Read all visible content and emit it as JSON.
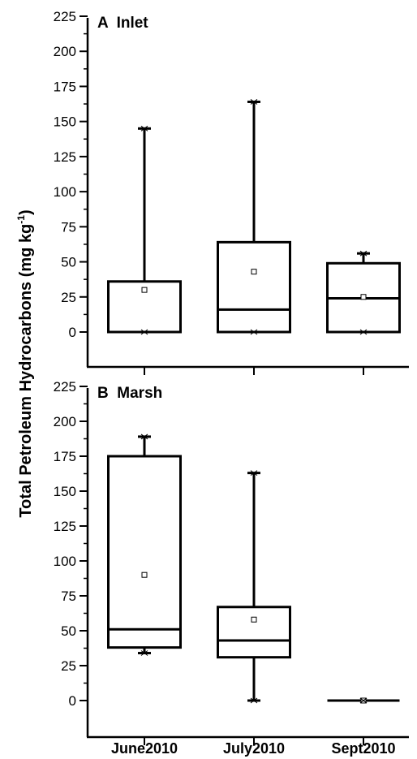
{
  "chart_data": {
    "type": "box",
    "ylabel": "Total Petroleum Hydrocarbons (mg kg",
    "ylabel_superscript": "-1",
    "ylabel_close": ")",
    "categories": [
      "June2010",
      "July2010",
      "Sept2010"
    ],
    "panels": [
      {
        "title": "A  Inlet",
        "ylim": [
          0,
          225
        ],
        "yticks": [
          "0",
          "25",
          "50",
          "75",
          "100",
          "125",
          "150",
          "175",
          "200",
          "225"
        ],
        "boxes": [
          {
            "category": "June2010",
            "q1": 0,
            "median": 0,
            "q3": 36,
            "whisker_low": 0,
            "whisker_high": 145,
            "mean": 30,
            "min": 0,
            "max": 145
          },
          {
            "category": "July2010",
            "q1": 0,
            "median": 16,
            "q3": 64,
            "whisker_low": 0,
            "whisker_high": 164,
            "mean": 43,
            "min": 0,
            "max": 164
          },
          {
            "category": "Sept2010",
            "q1": 0,
            "median": 24,
            "q3": 49,
            "whisker_low": 0,
            "whisker_high": 56,
            "mean": 25,
            "min": 0,
            "max": 56
          }
        ]
      },
      {
        "title": "B  Marsh",
        "ylim": [
          0,
          225
        ],
        "yticks": [
          "0",
          "25",
          "50",
          "75",
          "100",
          "125",
          "150",
          "175",
          "200",
          "225"
        ],
        "boxes": [
          {
            "category": "June2010",
            "q1": 38,
            "median": 51,
            "q3": 175,
            "whisker_low": 34,
            "whisker_high": 189,
            "mean": 90,
            "min": 34,
            "max": 189
          },
          {
            "category": "July2010",
            "q1": 31,
            "median": 43,
            "q3": 67,
            "whisker_low": 0,
            "whisker_high": 163,
            "mean": 58,
            "min": 0,
            "max": 163
          },
          {
            "category": "Sept2010",
            "q1": 0,
            "median": 0,
            "q3": 0,
            "whisker_low": 0,
            "whisker_high": 0,
            "mean": 0,
            "min": 0,
            "max": 0
          }
        ]
      }
    ]
  }
}
